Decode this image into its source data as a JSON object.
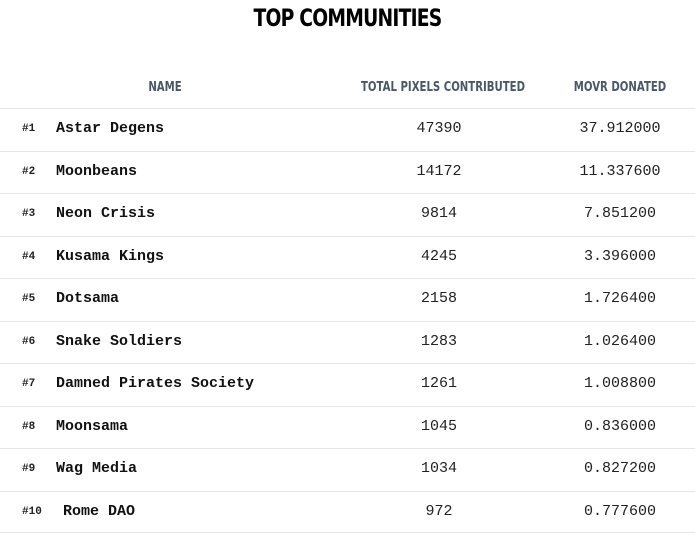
{
  "title": "TOP COMMUNITIES",
  "table": {
    "headers": {
      "name": "NAME",
      "pixels": "TOTAL PIXELS CONTRIBUTED",
      "movr": "MOVR DONATED"
    },
    "rows": [
      {
        "rank": "#1",
        "name": "Astar Degens",
        "pixels": "47390",
        "movr": "37.912000"
      },
      {
        "rank": "#2",
        "name": "Moonbeans",
        "pixels": "14172",
        "movr": "11.337600"
      },
      {
        "rank": "#3",
        "name": "Neon Crisis",
        "pixels": "9814",
        "movr": "7.851200"
      },
      {
        "rank": "#4",
        "name": "Kusama Kings",
        "pixels": "4245",
        "movr": "3.396000"
      },
      {
        "rank": "#5",
        "name": "Dotsama",
        "pixels": "2158",
        "movr": "1.726400"
      },
      {
        "rank": "#6",
        "name": "Snake Soldiers",
        "pixels": "1283",
        "movr": "1.026400"
      },
      {
        "rank": "#7",
        "name": "Damned Pirates Society",
        "pixels": "1261",
        "movr": "1.008800"
      },
      {
        "rank": "#8",
        "name": "Moonsama",
        "pixels": "1045",
        "movr": "0.836000"
      },
      {
        "rank": "#9",
        "name": "Wag Media",
        "pixels": "1034",
        "movr": "0.827200"
      },
      {
        "rank": "#10",
        "name": "Rome DAO",
        "pixels": "972",
        "movr": "0.777600"
      }
    ]
  }
}
